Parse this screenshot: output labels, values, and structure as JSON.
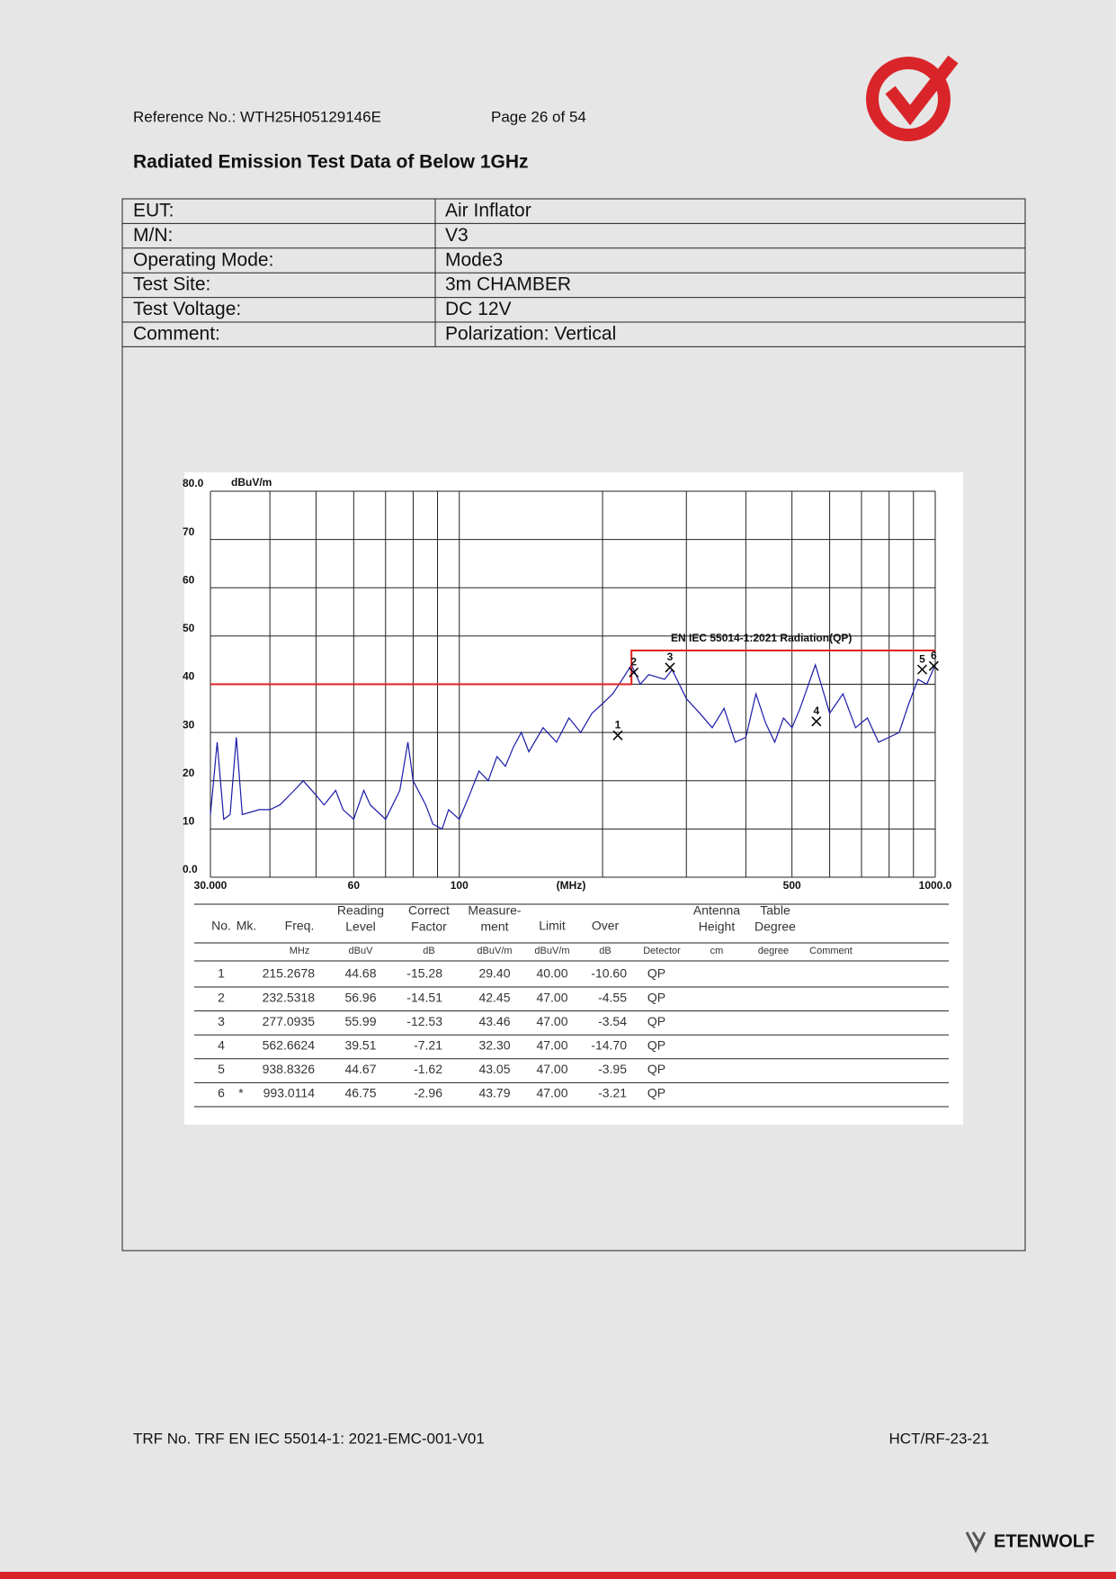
{
  "header": {
    "reference": "Reference No.: WTH25H05129146E",
    "page": "Page 26 of 54"
  },
  "title": "Radiated Emission Test Data of Below 1GHz",
  "info_table": [
    [
      "EUT:",
      "Air Inflator"
    ],
    [
      "M/N:",
      "V3"
    ],
    [
      "Operating Mode:",
      "Mode3"
    ],
    [
      "Test Site:",
      "3m CHAMBER"
    ],
    [
      "Test Voltage:",
      "DC 12V"
    ],
    [
      "Comment:",
      "Polarization: Vertical"
    ]
  ],
  "chart_data": {
    "type": "line",
    "y_unit": "dBuV/m",
    "x_unit": "(MHz)",
    "log_x": true,
    "grid": true,
    "xlim": [
      30,
      1000
    ],
    "ylim": [
      0,
      80
    ],
    "xticks": [
      {
        "value": 30,
        "label": "30.000"
      },
      60,
      100,
      500,
      {
        "value": 1000,
        "label": "1000.0"
      }
    ],
    "x_gridlines": [
      30,
      40,
      50,
      60,
      70,
      80,
      90,
      100,
      200,
      300,
      400,
      500,
      600,
      700,
      800,
      900,
      1000
    ],
    "yticks": [
      {
        "value": 0,
        "label": "0.0"
      },
      10,
      20,
      30,
      40,
      50,
      60,
      70,
      {
        "value": 80,
        "label": "80.0"
      }
    ],
    "trace": {
      "color": "#1a1aa8",
      "x": [
        30,
        31,
        32,
        33,
        34,
        35,
        38,
        40,
        42,
        45,
        47,
        50,
        52,
        55,
        57,
        60,
        63,
        65,
        70,
        75,
        78,
        80,
        85,
        88,
        92,
        95,
        100,
        105,
        110,
        115,
        120,
        125,
        130,
        135,
        140,
        150,
        160,
        170,
        180,
        190,
        200,
        210,
        220,
        230,
        240,
        250,
        270,
        280,
        300,
        320,
        340,
        360,
        380,
        400,
        420,
        440,
        460,
        480,
        500,
        520,
        560,
        600,
        640,
        680,
        720,
        760,
        800,
        840,
        880,
        920,
        960,
        1000
      ],
      "values": [
        13,
        28,
        12,
        13,
        29,
        13,
        14,
        14,
        15,
        18,
        20,
        17,
        15,
        18,
        14,
        12,
        18,
        15,
        12,
        18,
        28,
        20,
        15,
        11,
        10,
        14,
        12,
        17,
        22,
        20,
        25,
        23,
        27,
        30,
        26,
        31,
        28,
        33,
        30,
        34,
        36,
        38,
        41,
        44,
        40,
        42,
        41,
        43,
        37,
        34,
        31,
        35,
        28,
        29,
        38,
        32,
        28,
        33,
        31,
        35,
        44,
        34,
        38,
        31,
        33,
        28,
        29,
        30,
        36,
        41,
        40,
        44
      ]
    },
    "limit": {
      "name": "EN IEC 55014-1:2021 Radiation(QP)",
      "color": "#e02020",
      "x": [
        30,
        230,
        230,
        1000
      ],
      "values": [
        40,
        40,
        47,
        47
      ]
    },
    "markers": {
      "labels": [
        "1",
        "2",
        "3",
        "4",
        "5",
        "6"
      ],
      "x": [
        215.2678,
        232.5318,
        277.0935,
        562.6624,
        938.8326,
        993.0114
      ],
      "values": [
        29.4,
        42.45,
        43.46,
        32.3,
        43.05,
        43.79
      ]
    }
  },
  "data_table": {
    "header": [
      [
        "No."
      ],
      [
        "Mk."
      ],
      [
        "Freq."
      ],
      [
        "Reading",
        "Level"
      ],
      [
        "Correct",
        "Factor"
      ],
      [
        "Measure-",
        "ment"
      ],
      [
        "Limit"
      ],
      [
        "Over"
      ],
      [
        "Antenna",
        "Height"
      ],
      [
        "Table",
        "Degree"
      ]
    ],
    "units": [
      "MHz",
      "dBuV",
      "dB",
      "dBuV/m",
      "dBuV/m",
      "dB",
      "Detector",
      "cm",
      "degree",
      "Comment"
    ],
    "rows": [
      {
        "no": "1",
        "freq": "215.2678",
        "reading": "44.68",
        "factor": "-15.28",
        "measurement": "29.40",
        "limit": "40.00",
        "over": "-10.60",
        "detector": "QP"
      },
      {
        "no": "2",
        "freq": "232.5318",
        "reading": "56.96",
        "factor": "-14.51",
        "measurement": "42.45",
        "limit": "47.00",
        "over": "-4.55",
        "detector": "QP"
      },
      {
        "no": "3",
        "freq": "277.0935",
        "reading": "55.99",
        "factor": "-12.53",
        "measurement": "43.46",
        "limit": "47.00",
        "over": "-3.54",
        "detector": "QP"
      },
      {
        "no": "4",
        "freq": "562.6624",
        "reading": "39.51",
        "factor": "-7.21",
        "measurement": "32.30",
        "limit": "47.00",
        "over": "-14.70",
        "detector": "QP"
      },
      {
        "no": "5",
        "freq": "938.8326",
        "reading": "44.67",
        "factor": "-1.62",
        "measurement": "43.05",
        "limit": "47.00",
        "over": "-3.95",
        "detector": "QP"
      },
      {
        "no": "6",
        "mark": "*",
        "freq": "993.0114",
        "reading": "46.75",
        "factor": "-2.96",
        "measurement": "43.79",
        "limit": "47.00",
        "over": "-3.21",
        "detector": "QP"
      }
    ]
  },
  "footer": {
    "trf": "TRF No. TRF EN IEC 55014-1: 2021-EMC-001-V01",
    "code": "HCT/RF-23-21",
    "brand": "ETENWOLF"
  }
}
